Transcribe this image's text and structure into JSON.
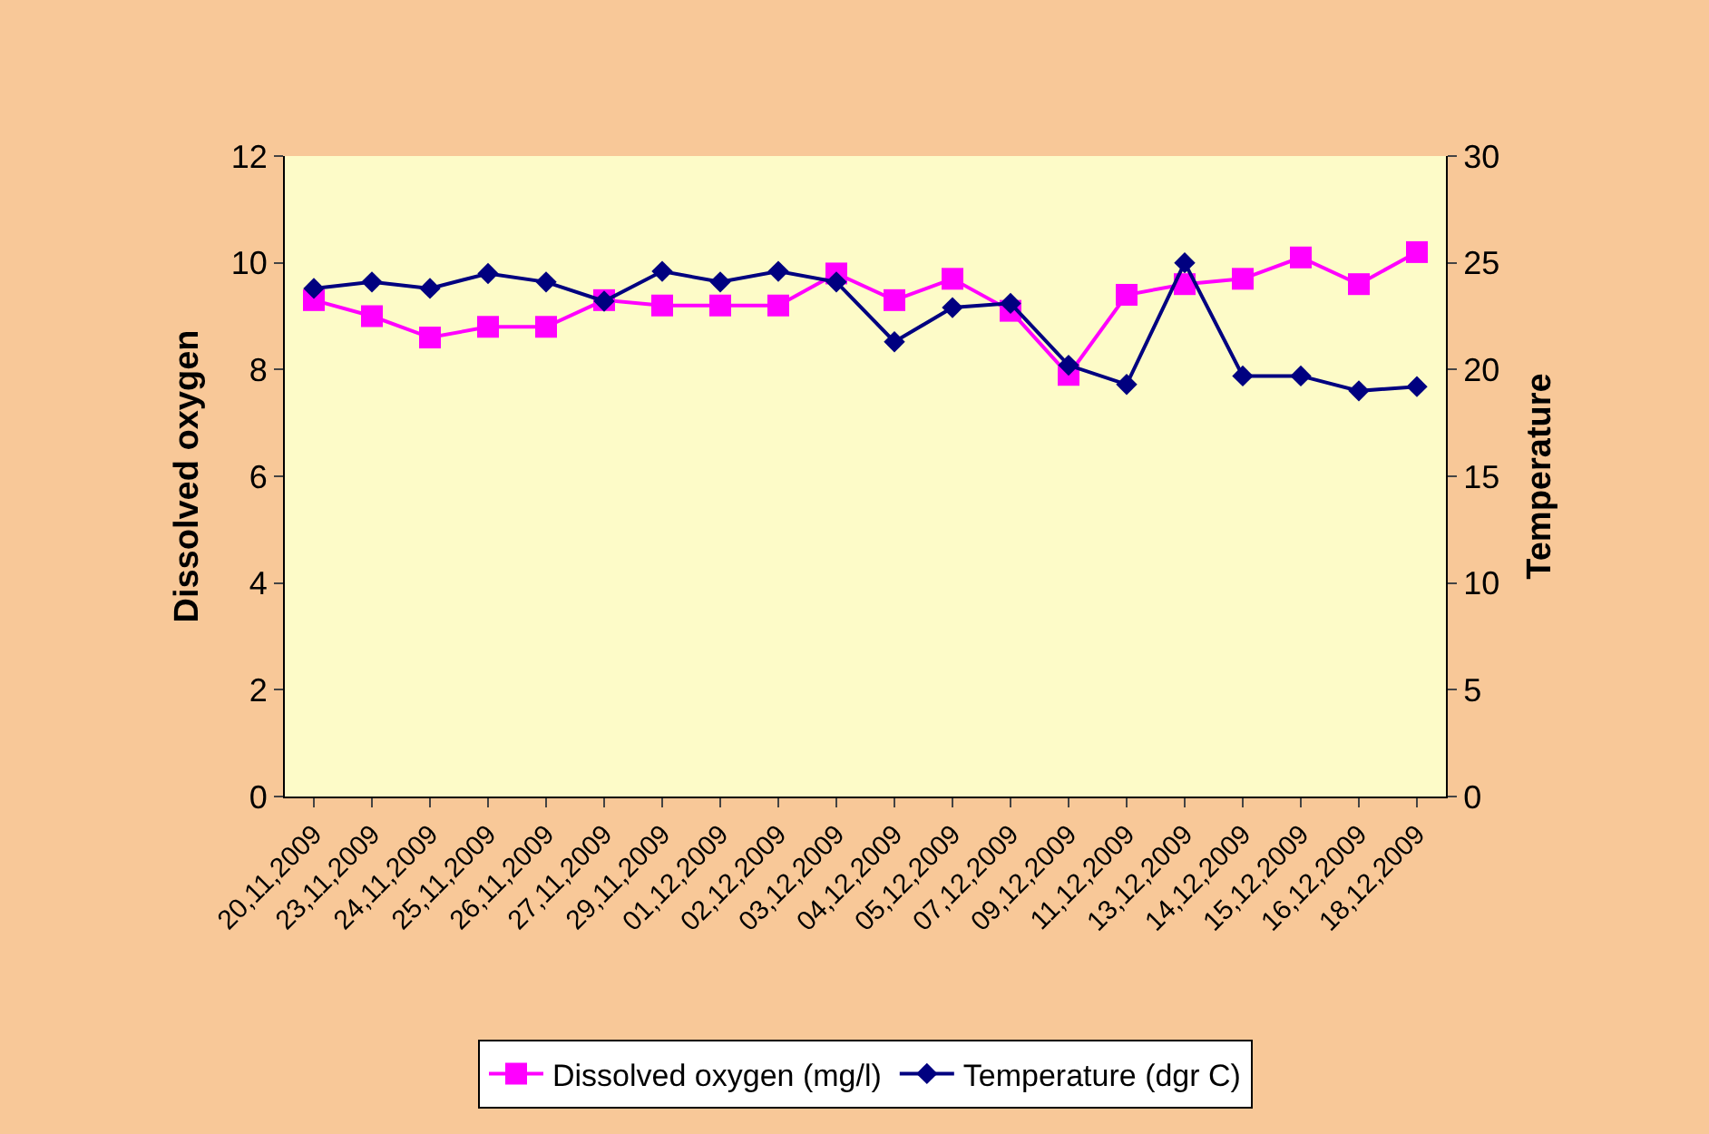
{
  "chart_data": {
    "type": "line",
    "ylabel": "Dissolved oxygen",
    "y2label": "Temperature",
    "categories": [
      "20,11,2009",
      "23,11,2009",
      "24,11,2009",
      "25,11,2009",
      "26,11,2009",
      "27,11,2009",
      "29,11,2009",
      "01,12,2009",
      "02,12,2009",
      "03,12,2009",
      "04,12,2009",
      "05,12,2009",
      "07,12,2009",
      "09,12,2009",
      "11,12,2009",
      "13,12,2009",
      "14,12,2009",
      "15,12,2009",
      "16,12,2009",
      "18,12,2009"
    ],
    "series": [
      {
        "name": "Dissolved oxygen (mg/l)",
        "color": "#ff00ff",
        "marker": "square",
        "values": [
          9.3,
          9.0,
          8.6,
          8.8,
          8.8,
          9.3,
          9.2,
          9.2,
          9.2,
          9.8,
          9.3,
          9.7,
          9.1,
          7.9,
          9.4,
          9.6,
          9.7,
          10.1,
          9.6,
          10.2
        ]
      },
      {
        "name": "Temperature (dgr C)",
        "color": "#000080",
        "marker": "diamond",
        "axis": "y2",
        "values": [
          23.8,
          24.1,
          23.8,
          24.5,
          24.1,
          23.2,
          24.6,
          24.1,
          24.6,
          24.1,
          21.3,
          22.9,
          23.1,
          20.2,
          19.3,
          25.0,
          19.7,
          19.7,
          19.0,
          19.2
        ]
      }
    ],
    "ylim": [
      0,
      12
    ],
    "yticks": [
      0,
      2,
      4,
      6,
      8,
      10,
      12
    ],
    "y2lim": [
      0,
      30
    ],
    "y2ticks": [
      0,
      5,
      10,
      15,
      20,
      25,
      30
    ],
    "grid": false,
    "legend": "bottom",
    "line_style": "solid"
  }
}
